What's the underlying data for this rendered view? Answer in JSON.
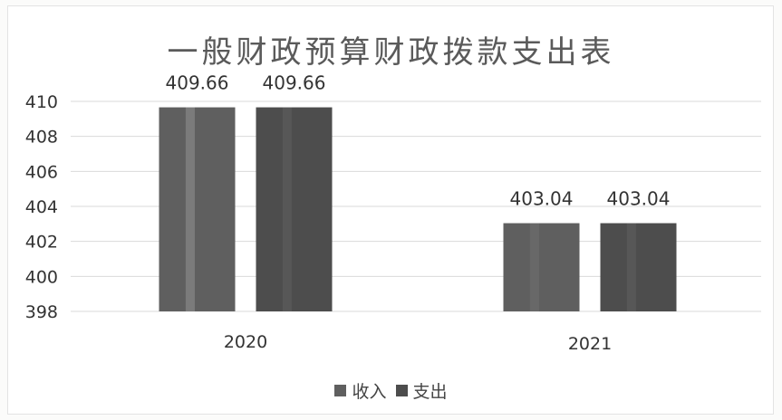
{
  "chart_data": {
    "type": "bar",
    "title": "一般财政预算财政拨款支出表",
    "categories": [
      "2020",
      "2021"
    ],
    "series": [
      {
        "name": "收入",
        "values": [
          409.66,
          403.04
        ],
        "color": "#5f5f5f"
      },
      {
        "name": "支出",
        "values": [
          409.66,
          403.04
        ],
        "color": "#4d4d4d"
      }
    ],
    "data_labels": [
      [
        "409.66",
        "403.04"
      ],
      [
        "409.66",
        "403.04"
      ]
    ],
    "ylim": [
      398,
      410
    ],
    "yticks": [
      "398",
      "400",
      "402",
      "404",
      "406",
      "408",
      "410"
    ],
    "xlabel": "",
    "ylabel": "",
    "grid": true,
    "legend_position": "bottom"
  }
}
